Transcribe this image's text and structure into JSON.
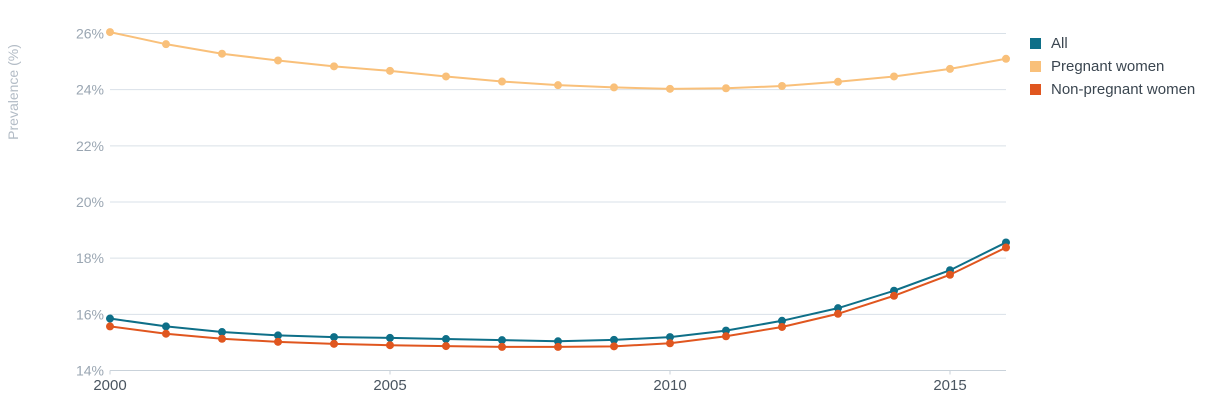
{
  "chart_data": {
    "type": "line",
    "ylabel": "Prevalence (%)",
    "xlabel": "",
    "x": [
      2000,
      2001,
      2002,
      2003,
      2004,
      2005,
      2006,
      2007,
      2008,
      2009,
      2010,
      2011,
      2012,
      2013,
      2014,
      2015,
      2016
    ],
    "x_ticks": [
      "2000",
      "2005",
      "2010",
      "2015"
    ],
    "y_ticks": [
      "14%",
      "16%",
      "18%",
      "20%",
      "22%",
      "24%",
      "26%"
    ],
    "ylim": [
      14,
      26.8
    ],
    "grid": true,
    "legend_position": "top-right",
    "series": [
      {
        "name": "All",
        "color": "#0e6f88",
        "values": [
          15.85,
          15.57,
          15.37,
          15.25,
          15.19,
          15.16,
          15.12,
          15.08,
          15.04,
          15.09,
          15.19,
          15.42,
          15.77,
          16.22,
          16.84,
          17.57,
          18.56
        ]
      },
      {
        "name": "Pregnant women",
        "color": "#f9c07a",
        "values": [
          26.05,
          25.62,
          25.28,
          25.04,
          24.83,
          24.67,
          24.47,
          24.29,
          24.16,
          24.08,
          24.03,
          24.05,
          24.13,
          24.28,
          24.47,
          24.74,
          25.1
        ]
      },
      {
        "name": "Non-pregnant women",
        "color": "#e0561f",
        "values": [
          15.57,
          15.31,
          15.13,
          15.02,
          14.95,
          14.9,
          14.87,
          14.84,
          14.84,
          14.86,
          14.97,
          15.22,
          15.55,
          16.02,
          16.66,
          17.41,
          18.38
        ]
      }
    ]
  }
}
